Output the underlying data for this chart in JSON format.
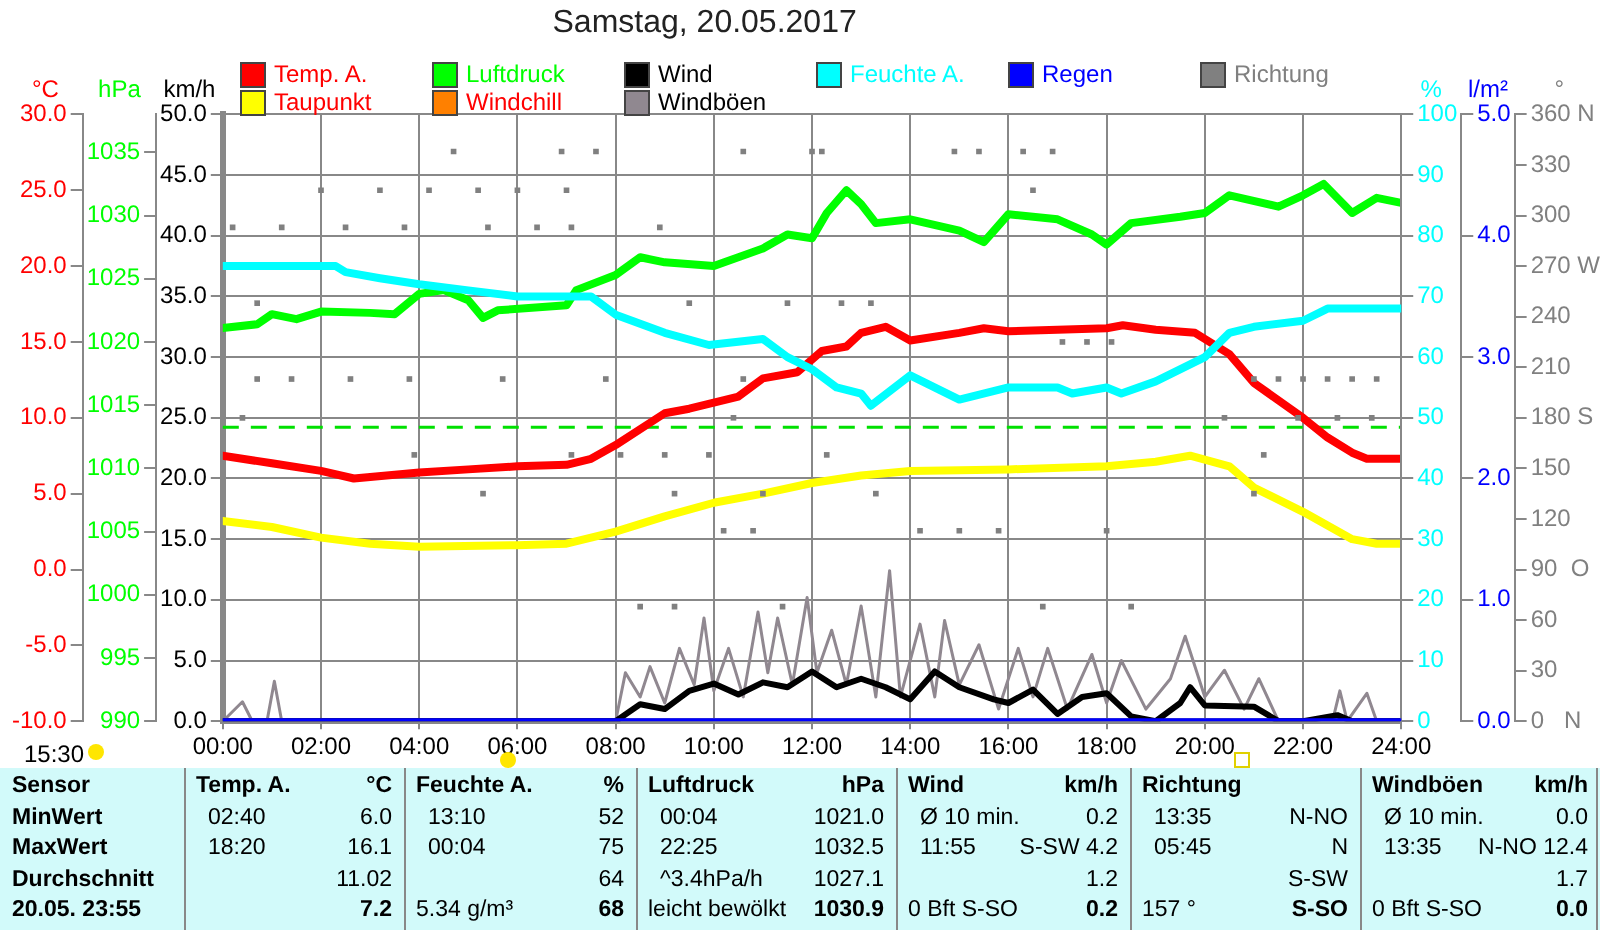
{
  "chart_data": [
    {
      "type": "line",
      "title": "Samstag, 20.05.2017",
      "ylabel": "km/h",
      "y2label": "°C",
      "y3label": "hPa",
      "xlim": [
        0,
        24
      ],
      "xticks": [
        {
          "value": 0,
          "label": "00:00"
        },
        {
          "value": 2,
          "label": "02:00"
        },
        {
          "value": 4,
          "label": "04:00"
        },
        {
          "value": 6,
          "label": "06:00"
        },
        {
          "value": 8,
          "label": "08:00"
        },
        {
          "value": 10,
          "label": "10:00"
        },
        {
          "value": 12,
          "label": "12:00"
        },
        {
          "value": 14,
          "label": "14:00"
        },
        {
          "value": 16,
          "label": "16:00"
        },
        {
          "value": 18,
          "label": "18:00"
        },
        {
          "value": 20,
          "label": "20:00"
        },
        {
          "value": 22,
          "label": "22:00"
        },
        {
          "value": 24,
          "label": "24:00"
        }
      ],
      "ylim": [
        0,
        50
      ],
      "yticks": [
        {
          "value": 0,
          "label": "0.0"
        },
        {
          "value": 5,
          "label": "5.0"
        },
        {
          "value": 10,
          "label": "10.0"
        },
        {
          "value": 15,
          "label": "15.0"
        },
        {
          "value": 20,
          "label": "20.0"
        },
        {
          "value": 25,
          "label": "25.0"
        },
        {
          "value": 30,
          "label": "30.0"
        },
        {
          "value": 35,
          "label": "35.0"
        },
        {
          "value": 40,
          "label": "40.0"
        },
        {
          "value": 45,
          "label": "45.0"
        },
        {
          "value": 50,
          "label": "50.0"
        }
      ],
      "y2lim": [
        -10,
        30
      ],
      "y2ticks": [
        {
          "value": -10,
          "label": "-10.0"
        },
        {
          "value": -5,
          "label": "-5.0"
        },
        {
          "value": 0,
          "label": "0.0"
        },
        {
          "value": 5,
          "label": "5.0"
        },
        {
          "value": 10,
          "label": "10.0"
        },
        {
          "value": 15,
          "label": "15.0"
        },
        {
          "value": 20,
          "label": "20.0"
        },
        {
          "value": 25,
          "label": "25.0"
        },
        {
          "value": 30,
          "label": "30.0"
        }
      ],
      "y3lim": [
        990,
        1038
      ],
      "y3ticks": [
        990,
        995,
        1000,
        1005,
        1010,
        1015,
        1020,
        1025,
        1030,
        1035
      ],
      "grid": true,
      "legend": "top",
      "marker": "none",
      "line_style": "solid",
      "ref_lines": [
        {
          "axis": "y3",
          "value": 1013.25,
          "color": "#00e000",
          "line_style": "dashed"
        }
      ],
      "series": [
        {
          "name": "Temp. A.",
          "color": "#ff0000",
          "axis": "y2",
          "x": [
            0,
            1,
            2,
            2.67,
            4,
            5,
            6,
            7,
            7.5,
            8,
            9,
            9.5,
            10.5,
            11,
            11.7,
            12.2,
            12.7,
            13,
            13.5,
            14,
            15,
            15.5,
            16,
            17,
            18,
            18.33,
            19,
            19.8,
            20.5,
            21,
            22,
            22.5,
            23,
            23.3,
            24
          ],
          "values": [
            7.5,
            7.0,
            6.5,
            6.0,
            6.4,
            6.6,
            6.8,
            6.9,
            7.3,
            8.2,
            10.3,
            10.6,
            11.4,
            12.6,
            13.0,
            14.4,
            14.7,
            15.6,
            16.0,
            15.1,
            15.6,
            15.9,
            15.7,
            15.8,
            15.9,
            16.1,
            15.8,
            15.6,
            14.2,
            12.3,
            10.0,
            8.7,
            7.7,
            7.3,
            7.3
          ]
        },
        {
          "name": "Luftdruck",
          "color": "#00ff00",
          "axis": "y3",
          "x": [
            0,
            0.7,
            1,
            1.5,
            2,
            3,
            3.5,
            4,
            4.5,
            5,
            5.3,
            5.6,
            7,
            7.2,
            8,
            8.5,
            9,
            10,
            11,
            11.5,
            12,
            12.3,
            12.7,
            13,
            13.3,
            14,
            15,
            15.5,
            16,
            17,
            17.7,
            18,
            18.5,
            19.5,
            20,
            20.5,
            21.5,
            22,
            22.42,
            23,
            23.5,
            24
          ],
          "values": [
            1021.1,
            1021.4,
            1022.2,
            1021.8,
            1022.4,
            1022.3,
            1022.2,
            1023.8,
            1024.1,
            1023.3,
            1021.9,
            1022.5,
            1022.9,
            1024.1,
            1025.3,
            1026.7,
            1026.3,
            1026.0,
            1027.4,
            1028.5,
            1028.2,
            1030.2,
            1032.0,
            1030.9,
            1029.4,
            1029.7,
            1028.8,
            1027.9,
            1030.1,
            1029.7,
            1028.5,
            1027.7,
            1029.4,
            1029.9,
            1030.2,
            1031.6,
            1030.7,
            1031.6,
            1032.5,
            1030.2,
            1031.4,
            1031.0
          ]
        },
        {
          "name": "Wind",
          "color": "#000000",
          "x": [
            0,
            8,
            8.5,
            9,
            9.5,
            10,
            10.5,
            11,
            11.5,
            12,
            12.5,
            13,
            13.5,
            14,
            14.5,
            15,
            15.7,
            16,
            16.5,
            17,
            17.5,
            18,
            18.5,
            19,
            19.5,
            19.7,
            20,
            21,
            21.5,
            22,
            22.7,
            23,
            24
          ],
          "values": [
            0,
            0,
            1.4,
            1.0,
            2.5,
            3.1,
            2.2,
            3.2,
            2.8,
            4.1,
            2.8,
            3.5,
            2.8,
            1.8,
            4.1,
            2.8,
            1.8,
            1.5,
            2.6,
            0.6,
            2.0,
            2.3,
            0.4,
            0,
            1.5,
            2.8,
            1.3,
            1.2,
            0,
            0,
            0.5,
            0,
            0
          ]
        },
        {
          "name": "Taupunkt",
          "color": "#ffff00",
          "axis": "y2",
          "x": [
            0,
            1,
            2,
            3,
            4,
            6,
            7,
            8,
            9,
            10,
            11,
            12,
            13,
            14,
            16,
            18,
            19,
            19.7,
            20.5,
            21,
            22,
            23,
            23.5,
            24
          ],
          "values": [
            3.2,
            2.8,
            2.1,
            1.7,
            1.5,
            1.6,
            1.7,
            2.5,
            3.5,
            4.4,
            5.0,
            5.7,
            6.2,
            6.5,
            6.6,
            6.8,
            7.1,
            7.5,
            6.8,
            5.4,
            3.8,
            2.0,
            1.7,
            1.7
          ]
        },
        {
          "name": "Windchill",
          "color": "#ff8000",
          "axis": "y2"
        },
        {
          "name": "Windböen",
          "color": "#908890",
          "x": [
            0,
            0.4,
            0.6,
            0.9,
            1.05,
            1.2,
            8,
            8.2,
            8.5,
            8.7,
            9,
            9.3,
            9.6,
            9.8,
            10,
            10.3,
            10.6,
            10.9,
            11.1,
            11.3,
            11.6,
            11.9,
            12.1,
            12.4,
            12.7,
            13,
            13.3,
            13.58,
            13.8,
            14.2,
            14.5,
            14.7,
            15,
            15.4,
            15.8,
            16.2,
            16.5,
            16.8,
            17.2,
            17.7,
            18,
            18.3,
            18.8,
            19.3,
            19.6,
            20,
            20.4,
            20.8,
            21.1,
            21.5,
            22.6,
            22.75,
            22.9,
            23.3,
            23.5,
            24
          ],
          "values": [
            0,
            1.6,
            0,
            0,
            3.3,
            0,
            0,
            4.0,
            2,
            4.5,
            1.5,
            6.0,
            3,
            8.5,
            2.5,
            6,
            2,
            9.0,
            4,
            8.5,
            3,
            10.2,
            4,
            7.5,
            3,
            9.5,
            2,
            12.4,
            2,
            8,
            2,
            8.3,
            3,
            6.3,
            1,
            6,
            2,
            6.0,
            1,
            5.5,
            1.5,
            5,
            1,
            3.5,
            7,
            2,
            4.2,
            1,
            3.5,
            0,
            0,
            2.5,
            0,
            2.3,
            0,
            0
          ]
        }
      ],
      "annotations": [
        "15:30",
        "Sensor",
        "Temp. A.",
        "°C",
        "Feuchte A.",
        "%",
        "Luftdruck",
        "hPa",
        "Wind",
        "km/h",
        "Richtung",
        "Windböen",
        "km/h",
        "MinWert",
        "02:40",
        "6.0",
        "13:10",
        "52",
        "00:04",
        "1021.0",
        "Ø 10 min.",
        "0.2",
        "13:35",
        "N-NO",
        "Ø 10 min.",
        "0.0",
        "MaxWert",
        "18:20",
        "16.1",
        "00:04",
        "75",
        "22:25",
        "1032.5",
        "11:55",
        "S-SW 4.2",
        "05:45",
        "N",
        "13:35",
        "N-NO 12.4",
        "Durchschnitt",
        "11.02",
        "64",
        "^3.4hPa/h",
        "1027.1",
        "1.2",
        "S-SW",
        "1.7",
        "20.05. 23:55",
        "7.2",
        "5.34 g/m³",
        "68",
        "leicht bewölkt",
        "1030.9",
        "0 Bft S-SO",
        "0.2",
        "157 °",
        "S-SO",
        "0 Bft S-SO",
        "0.0"
      ]
    },
    {
      "type": "line",
      "ylabel": "%",
      "y2label": "l/m²",
      "y3label": "°",
      "xlim": [
        0,
        24
      ],
      "ylim": [
        0,
        100
      ],
      "yticks": [
        0,
        10,
        20,
        30,
        40,
        50,
        60,
        70,
        80,
        90,
        100
      ],
      "y2lim": [
        0,
        5
      ],
      "y2ticks": [
        {
          "value": 0,
          "label": "0.0"
        },
        {
          "value": 1,
          "label": "1.0"
        },
        {
          "value": 2,
          "label": "2.0"
        },
        {
          "value": 3,
          "label": "3.0"
        },
        {
          "value": 4,
          "label": "4.0"
        },
        {
          "value": 5,
          "label": "5.0"
        }
      ],
      "y3lim": [
        0,
        360
      ],
      "y3ticks": [
        {
          "value": 0,
          "label": "0   N"
        },
        30,
        60,
        {
          "value": 90,
          "label": "90  O"
        },
        120,
        150,
        {
          "value": 180,
          "label": "180 S"
        },
        210,
        240,
        {
          "value": 270,
          "label": "270 W"
        },
        300,
        330,
        {
          "value": 360,
          "label": "360 N"
        }
      ],
      "tick_labels": "y",
      "legend": "top",
      "marker": "none",
      "line_style": "solid",
      "series": [
        {
          "name": "Feuchte A.",
          "color": "#00ffff",
          "x": [
            0,
            2.3,
            2.5,
            3.2,
            4,
            5,
            6,
            7.5,
            8,
            9,
            9.9,
            11,
            11.5,
            12,
            12.5,
            13,
            13.2,
            14,
            15,
            16,
            17,
            17.3,
            18,
            18.3,
            19,
            20,
            20.5,
            21,
            22,
            22.5,
            23,
            24
          ],
          "values": [
            75,
            75,
            74,
            73,
            72,
            71,
            70,
            70,
            67,
            64,
            62,
            63,
            60,
            58,
            55,
            54,
            52,
            57,
            53,
            55,
            55,
            54,
            55,
            54,
            56,
            60,
            64,
            65,
            66,
            68,
            68,
            68
          ]
        },
        {
          "name": "Regen",
          "color": "#0000ff",
          "axis": "y2",
          "x": [
            0,
            24
          ],
          "values": [
            0,
            0
          ]
        },
        {
          "name": "Richtung",
          "color": "#808080",
          "axis": "y3",
          "type": "scatter",
          "marker": "square",
          "x": [
            4.7,
            6.9,
            7.6,
            10.6,
            12,
            12.2,
            14.9,
            15.4,
            16.3,
            16.9,
            2,
            3.2,
            4.2,
            5.2,
            6,
            7,
            16.5,
            0.2,
            1.2,
            2.5,
            3.7,
            5.4,
            6.4,
            7.1,
            8.9,
            0.7,
            9.5,
            11.5,
            12.6,
            13.2,
            17.1,
            17.6,
            18.1,
            0.7,
            1.4,
            2.6,
            3.8,
            5.7,
            7.8,
            10.6,
            21,
            21.5,
            22,
            22.5,
            23,
            23.5,
            0.4,
            10.4,
            20.4,
            21.9,
            22.7,
            23.4,
            3.9,
            7.1,
            8.1,
            9,
            9.9,
            12.3,
            21.2,
            5.3,
            9.2,
            11,
            13.3,
            21,
            10.2,
            10.8,
            14.2,
            15,
            15.8,
            18,
            8.5,
            9.2,
            11.4,
            16.7,
            18.5
          ],
          "values": [
            338,
            338,
            338,
            338,
            338,
            338,
            338,
            338,
            338,
            338,
            315,
            315,
            315,
            315,
            315,
            315,
            315,
            293,
            293,
            293,
            293,
            293,
            293,
            293,
            293,
            248,
            248,
            248,
            248,
            248,
            225,
            225,
            225,
            203,
            203,
            203,
            203,
            203,
            203,
            203,
            203,
            203,
            203,
            203,
            203,
            203,
            180,
            180,
            180,
            180,
            180,
            180,
            158,
            158,
            158,
            158,
            158,
            158,
            158,
            135,
            135,
            135,
            135,
            135,
            113,
            113,
            113,
            113,
            113,
            113,
            68,
            68,
            68,
            68,
            68
          ]
        }
      ]
    }
  ]
}
